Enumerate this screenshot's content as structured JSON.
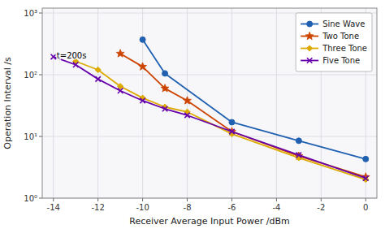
{
  "chart_data": {
    "type": "line",
    "x_label": "Receiver Average Input Power /dBm",
    "y_label": "Operation Interval /s",
    "annotations": [
      {
        "text": "t=200s",
        "x": -13.85,
        "y": 210
      }
    ],
    "xlim": [
      -14.5,
      0.5
    ],
    "xticks": [
      -14,
      -12,
      -10,
      -8,
      -6,
      -4,
      -2,
      0
    ],
    "ylim": [
      1.0,
      1200.0
    ],
    "yticks": [
      {
        "value": 1,
        "label": "10⁰"
      },
      {
        "value": 10,
        "label": "10¹"
      },
      {
        "value": 100,
        "label": "10²"
      },
      {
        "value": 1000,
        "label": "10³"
      }
    ],
    "log": "y",
    "grid": true,
    "legend": "upper right",
    "series": [
      {
        "name": "Sine Wave",
        "color": "#2060b0",
        "marker": "circle",
        "x": [
          -10,
          -9,
          -6,
          -3,
          0
        ],
        "values": [
          370,
          105,
          17,
          8.5,
          4.3
        ]
      },
      {
        "name": "Two Tone",
        "color": "#cc4400",
        "marker": "star",
        "x": [
          -11,
          -10,
          -9,
          -8,
          -6,
          -3,
          0
        ],
        "values": [
          220,
          135,
          60,
          38,
          12,
          4.8,
          2.2
        ]
      },
      {
        "name": "Three Tone",
        "color": "#ddaa00",
        "marker": "diamond",
        "x": [
          -13,
          -12,
          -11,
          -10,
          -9,
          -8,
          -6,
          -3,
          0
        ],
        "values": [
          165,
          120,
          65,
          42,
          30,
          25,
          11,
          4.5,
          2.0
        ]
      },
      {
        "name": "Five Tone",
        "color": "#6600aa",
        "marker": "x",
        "x": [
          -14,
          -13,
          -12,
          -11,
          -10,
          -9,
          -8,
          -6,
          -3,
          0
        ],
        "values": [
          195,
          145,
          85,
          55,
          38,
          28,
          22,
          12,
          5.0,
          2.1
        ]
      }
    ]
  }
}
